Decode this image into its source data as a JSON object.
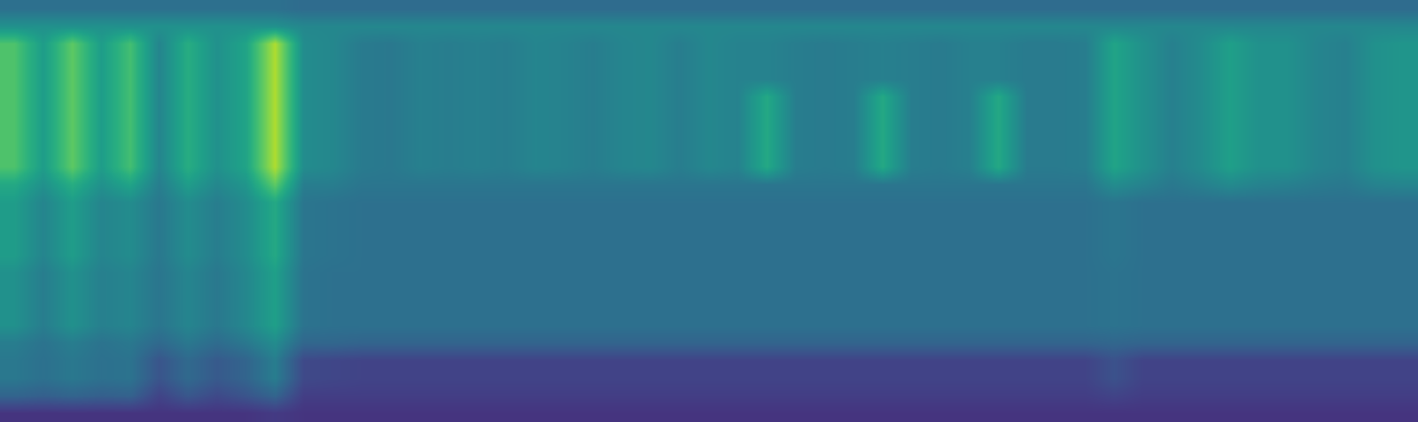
{
  "chart_data": {
    "type": "heatmap",
    "color": "viridis",
    "tick_labels": false,
    "zlim": [
      0,
      1
    ],
    "cells": [
      [
        0.37,
        0.37,
        0.37,
        0.37,
        0.37,
        0.37,
        0.37,
        0.37,
        0.37,
        0.37,
        0.35,
        0.35,
        0.35,
        0.35,
        0.35,
        0.35,
        0.35,
        0.35,
        0.35,
        0.35,
        0.35,
        0.35,
        0.35,
        0.35,
        0.35,
        0.35,
        0.35,
        0.35,
        0.35,
        0.35,
        0.35,
        0.35,
        0.35,
        0.35,
        0.35,
        0.35,
        0.35,
        0.35,
        0.35,
        0.35,
        0.35,
        0.35,
        0.35,
        0.35,
        0.35,
        0.35,
        0.35,
        0.35,
        0.35
      ],
      [
        0.5,
        0.5,
        0.5,
        0.5,
        0.5,
        0.5,
        0.5,
        0.5,
        0.5,
        0.5,
        0.46,
        0.46,
        0.46,
        0.46,
        0.46,
        0.46,
        0.46,
        0.46,
        0.46,
        0.46,
        0.46,
        0.46,
        0.46,
        0.46,
        0.46,
        0.46,
        0.46,
        0.46,
        0.46,
        0.46,
        0.46,
        0.46,
        0.46,
        0.46,
        0.46,
        0.46,
        0.46,
        0.46,
        0.46,
        0.46,
        0.46,
        0.46,
        0.46,
        0.46,
        0.46,
        0.46,
        0.46,
        0.46,
        0.46
      ],
      [
        0.72,
        0.55,
        0.75,
        0.55,
        0.7,
        0.45,
        0.62,
        0.5,
        0.58,
        0.88,
        0.48,
        0.46,
        0.41,
        0.4,
        0.43,
        0.42,
        0.43,
        0.42,
        0.45,
        0.44,
        0.42,
        0.45,
        0.46,
        0.42,
        0.46,
        0.44,
        0.44,
        0.42,
        0.41,
        0.42,
        0.43,
        0.42,
        0.41,
        0.43,
        0.43,
        0.41,
        0.41,
        0.42,
        0.58,
        0.5,
        0.43,
        0.48,
        0.56,
        0.5,
        0.5,
        0.45,
        0.43,
        0.5,
        0.52
      ],
      [
        0.72,
        0.55,
        0.75,
        0.55,
        0.7,
        0.45,
        0.62,
        0.5,
        0.58,
        0.88,
        0.48,
        0.46,
        0.41,
        0.4,
        0.43,
        0.42,
        0.43,
        0.42,
        0.45,
        0.44,
        0.42,
        0.45,
        0.46,
        0.42,
        0.46,
        0.44,
        0.44,
        0.42,
        0.41,
        0.42,
        0.43,
        0.42,
        0.41,
        0.43,
        0.43,
        0.41,
        0.41,
        0.42,
        0.58,
        0.5,
        0.43,
        0.48,
        0.56,
        0.5,
        0.5,
        0.45,
        0.43,
        0.5,
        0.52
      ],
      [
        0.72,
        0.55,
        0.75,
        0.55,
        0.7,
        0.45,
        0.62,
        0.5,
        0.58,
        0.88,
        0.48,
        0.46,
        0.41,
        0.4,
        0.43,
        0.42,
        0.43,
        0.42,
        0.45,
        0.44,
        0.42,
        0.45,
        0.46,
        0.42,
        0.46,
        0.44,
        0.44,
        0.42,
        0.41,
        0.42,
        0.43,
        0.42,
        0.41,
        0.43,
        0.43,
        0.41,
        0.41,
        0.42,
        0.58,
        0.5,
        0.43,
        0.48,
        0.56,
        0.5,
        0.5,
        0.45,
        0.43,
        0.5,
        0.52
      ],
      [
        0.72,
        0.55,
        0.75,
        0.55,
        0.7,
        0.45,
        0.62,
        0.5,
        0.58,
        0.88,
        0.48,
        0.46,
        0.41,
        0.4,
        0.43,
        0.42,
        0.43,
        0.42,
        0.45,
        0.44,
        0.42,
        0.45,
        0.46,
        0.42,
        0.46,
        0.44,
        0.6,
        0.42,
        0.41,
        0.42,
        0.6,
        0.42,
        0.41,
        0.43,
        0.6,
        0.41,
        0.41,
        0.42,
        0.58,
        0.5,
        0.43,
        0.48,
        0.56,
        0.5,
        0.5,
        0.45,
        0.43,
        0.5,
        0.52
      ],
      [
        0.72,
        0.55,
        0.75,
        0.55,
        0.7,
        0.45,
        0.62,
        0.5,
        0.58,
        0.88,
        0.48,
        0.46,
        0.41,
        0.4,
        0.43,
        0.42,
        0.43,
        0.42,
        0.45,
        0.44,
        0.42,
        0.45,
        0.46,
        0.42,
        0.46,
        0.44,
        0.6,
        0.42,
        0.41,
        0.42,
        0.6,
        0.42,
        0.41,
        0.43,
        0.6,
        0.41,
        0.41,
        0.42,
        0.58,
        0.5,
        0.43,
        0.48,
        0.56,
        0.5,
        0.5,
        0.45,
        0.43,
        0.5,
        0.52
      ],
      [
        0.72,
        0.55,
        0.75,
        0.55,
        0.7,
        0.45,
        0.62,
        0.5,
        0.58,
        0.88,
        0.48,
        0.46,
        0.41,
        0.4,
        0.43,
        0.42,
        0.43,
        0.42,
        0.45,
        0.44,
        0.42,
        0.45,
        0.46,
        0.42,
        0.46,
        0.44,
        0.6,
        0.42,
        0.41,
        0.42,
        0.6,
        0.42,
        0.41,
        0.43,
        0.6,
        0.41,
        0.41,
        0.42,
        0.58,
        0.5,
        0.43,
        0.48,
        0.56,
        0.5,
        0.5,
        0.45,
        0.43,
        0.5,
        0.52
      ],
      [
        0.72,
        0.55,
        0.75,
        0.55,
        0.7,
        0.45,
        0.62,
        0.5,
        0.58,
        0.88,
        0.48,
        0.46,
        0.41,
        0.4,
        0.43,
        0.42,
        0.43,
        0.42,
        0.45,
        0.44,
        0.42,
        0.45,
        0.46,
        0.42,
        0.46,
        0.44,
        0.6,
        0.42,
        0.41,
        0.42,
        0.6,
        0.42,
        0.41,
        0.43,
        0.6,
        0.41,
        0.41,
        0.42,
        0.58,
        0.5,
        0.43,
        0.48,
        0.56,
        0.5,
        0.5,
        0.45,
        0.43,
        0.5,
        0.52
      ],
      [
        0.72,
        0.55,
        0.75,
        0.55,
        0.7,
        0.45,
        0.62,
        0.5,
        0.58,
        0.88,
        0.48,
        0.46,
        0.41,
        0.4,
        0.43,
        0.42,
        0.43,
        0.42,
        0.45,
        0.44,
        0.42,
        0.45,
        0.46,
        0.42,
        0.46,
        0.44,
        0.6,
        0.42,
        0.41,
        0.42,
        0.6,
        0.42,
        0.41,
        0.43,
        0.6,
        0.41,
        0.41,
        0.42,
        0.58,
        0.5,
        0.43,
        0.48,
        0.56,
        0.5,
        0.5,
        0.45,
        0.43,
        0.5,
        0.52
      ],
      [
        0.6,
        0.5,
        0.62,
        0.5,
        0.58,
        0.42,
        0.55,
        0.46,
        0.52,
        0.75,
        0.42,
        0.42,
        0.39,
        0.39,
        0.39,
        0.39,
        0.39,
        0.39,
        0.39,
        0.39,
        0.39,
        0.39,
        0.39,
        0.39,
        0.39,
        0.39,
        0.39,
        0.39,
        0.39,
        0.39,
        0.39,
        0.39,
        0.39,
        0.39,
        0.39,
        0.39,
        0.39,
        0.39,
        0.48,
        0.44,
        0.4,
        0.43,
        0.47,
        0.44,
        0.43,
        0.41,
        0.4,
        0.44,
        0.45
      ],
      [
        0.55,
        0.45,
        0.55,
        0.45,
        0.48,
        0.4,
        0.48,
        0.42,
        0.48,
        0.6,
        0.39,
        0.38,
        0.37,
        0.37,
        0.37,
        0.37,
        0.37,
        0.37,
        0.37,
        0.37,
        0.37,
        0.37,
        0.37,
        0.37,
        0.37,
        0.37,
        0.37,
        0.37,
        0.37,
        0.37,
        0.37,
        0.37,
        0.37,
        0.37,
        0.37,
        0.37,
        0.37,
        0.37,
        0.39,
        0.37,
        0.37,
        0.37,
        0.37,
        0.37,
        0.37,
        0.37,
        0.37,
        0.37,
        0.37
      ],
      [
        0.55,
        0.45,
        0.55,
        0.45,
        0.48,
        0.4,
        0.48,
        0.42,
        0.48,
        0.6,
        0.39,
        0.38,
        0.37,
        0.37,
        0.37,
        0.37,
        0.37,
        0.37,
        0.37,
        0.37,
        0.37,
        0.37,
        0.37,
        0.37,
        0.37,
        0.37,
        0.37,
        0.37,
        0.37,
        0.37,
        0.37,
        0.37,
        0.37,
        0.37,
        0.37,
        0.37,
        0.37,
        0.37,
        0.39,
        0.37,
        0.37,
        0.37,
        0.37,
        0.37,
        0.37,
        0.37,
        0.37,
        0.37,
        0.37
      ],
      [
        0.55,
        0.45,
        0.55,
        0.45,
        0.48,
        0.4,
        0.48,
        0.42,
        0.48,
        0.6,
        0.39,
        0.38,
        0.37,
        0.37,
        0.37,
        0.37,
        0.37,
        0.37,
        0.37,
        0.37,
        0.37,
        0.37,
        0.37,
        0.37,
        0.37,
        0.37,
        0.37,
        0.37,
        0.37,
        0.37,
        0.37,
        0.37,
        0.37,
        0.37,
        0.37,
        0.37,
        0.37,
        0.37,
        0.39,
        0.37,
        0.37,
        0.37,
        0.37,
        0.37,
        0.37,
        0.37,
        0.37,
        0.37,
        0.37
      ],
      [
        0.55,
        0.45,
        0.55,
        0.45,
        0.48,
        0.4,
        0.48,
        0.42,
        0.48,
        0.6,
        0.39,
        0.38,
        0.37,
        0.37,
        0.37,
        0.37,
        0.37,
        0.37,
        0.37,
        0.37,
        0.37,
        0.37,
        0.37,
        0.37,
        0.37,
        0.37,
        0.37,
        0.37,
        0.37,
        0.37,
        0.37,
        0.37,
        0.37,
        0.37,
        0.37,
        0.37,
        0.37,
        0.37,
        0.39,
        0.37,
        0.37,
        0.37,
        0.37,
        0.37,
        0.37,
        0.37,
        0.37,
        0.37,
        0.37
      ],
      [
        0.5,
        0.42,
        0.5,
        0.43,
        0.45,
        0.39,
        0.45,
        0.4,
        0.46,
        0.56,
        0.38,
        0.37,
        0.37,
        0.37,
        0.37,
        0.37,
        0.37,
        0.37,
        0.37,
        0.37,
        0.37,
        0.37,
        0.37,
        0.37,
        0.37,
        0.37,
        0.37,
        0.37,
        0.37,
        0.37,
        0.37,
        0.37,
        0.37,
        0.37,
        0.37,
        0.37,
        0.37,
        0.37,
        0.38,
        0.37,
        0.37,
        0.37,
        0.37,
        0.37,
        0.37,
        0.37,
        0.37,
        0.37,
        0.37
      ],
      [
        0.5,
        0.42,
        0.5,
        0.43,
        0.45,
        0.39,
        0.45,
        0.4,
        0.46,
        0.56,
        0.38,
        0.37,
        0.37,
        0.37,
        0.37,
        0.37,
        0.37,
        0.37,
        0.37,
        0.37,
        0.37,
        0.37,
        0.37,
        0.37,
        0.37,
        0.37,
        0.37,
        0.37,
        0.37,
        0.37,
        0.37,
        0.37,
        0.37,
        0.37,
        0.37,
        0.37,
        0.37,
        0.37,
        0.38,
        0.37,
        0.37,
        0.37,
        0.37,
        0.37,
        0.37,
        0.37,
        0.37,
        0.37,
        0.37
      ],
      [
        0.5,
        0.42,
        0.5,
        0.43,
        0.45,
        0.39,
        0.45,
        0.4,
        0.46,
        0.56,
        0.38,
        0.37,
        0.37,
        0.37,
        0.37,
        0.37,
        0.37,
        0.37,
        0.37,
        0.37,
        0.37,
        0.37,
        0.37,
        0.37,
        0.37,
        0.37,
        0.37,
        0.37,
        0.37,
        0.37,
        0.37,
        0.37,
        0.37,
        0.37,
        0.37,
        0.37,
        0.37,
        0.37,
        0.38,
        0.37,
        0.37,
        0.37,
        0.37,
        0.37,
        0.37,
        0.37,
        0.37,
        0.37,
        0.37
      ],
      [
        0.5,
        0.42,
        0.5,
        0.43,
        0.45,
        0.39,
        0.45,
        0.4,
        0.46,
        0.56,
        0.38,
        0.37,
        0.37,
        0.37,
        0.37,
        0.37,
        0.37,
        0.37,
        0.37,
        0.37,
        0.37,
        0.37,
        0.37,
        0.37,
        0.37,
        0.37,
        0.37,
        0.37,
        0.37,
        0.37,
        0.37,
        0.37,
        0.37,
        0.37,
        0.37,
        0.37,
        0.37,
        0.37,
        0.38,
        0.37,
        0.37,
        0.37,
        0.37,
        0.37,
        0.37,
        0.37,
        0.37,
        0.37,
        0.37
      ],
      [
        0.42,
        0.38,
        0.42,
        0.38,
        0.4,
        0.34,
        0.4,
        0.35,
        0.4,
        0.48,
        0.33,
        0.33,
        0.32,
        0.32,
        0.32,
        0.32,
        0.32,
        0.32,
        0.32,
        0.32,
        0.32,
        0.32,
        0.32,
        0.32,
        0.32,
        0.32,
        0.32,
        0.32,
        0.32,
        0.32,
        0.32,
        0.32,
        0.32,
        0.32,
        0.32,
        0.32,
        0.32,
        0.32,
        0.33,
        0.32,
        0.32,
        0.32,
        0.32,
        0.32,
        0.32,
        0.32,
        0.32,
        0.32,
        0.32
      ],
      [
        0.4,
        0.37,
        0.4,
        0.37,
        0.38,
        0.26,
        0.34,
        0.28,
        0.32,
        0.42,
        0.22,
        0.21,
        0.2,
        0.2,
        0.2,
        0.2,
        0.2,
        0.2,
        0.2,
        0.2,
        0.2,
        0.2,
        0.2,
        0.2,
        0.2,
        0.2,
        0.2,
        0.2,
        0.2,
        0.2,
        0.2,
        0.2,
        0.2,
        0.2,
        0.2,
        0.2,
        0.2,
        0.2,
        0.25,
        0.2,
        0.2,
        0.2,
        0.2,
        0.2,
        0.2,
        0.2,
        0.2,
        0.2,
        0.2
      ],
      [
        0.4,
        0.37,
        0.4,
        0.37,
        0.38,
        0.26,
        0.34,
        0.28,
        0.32,
        0.42,
        0.22,
        0.21,
        0.2,
        0.2,
        0.2,
        0.2,
        0.2,
        0.2,
        0.2,
        0.2,
        0.2,
        0.2,
        0.2,
        0.2,
        0.2,
        0.2,
        0.2,
        0.2,
        0.2,
        0.2,
        0.2,
        0.2,
        0.2,
        0.2,
        0.2,
        0.2,
        0.2,
        0.2,
        0.25,
        0.2,
        0.2,
        0.2,
        0.2,
        0.2,
        0.2,
        0.2,
        0.2,
        0.2,
        0.2
      ],
      [
        0.32,
        0.3,
        0.32,
        0.3,
        0.31,
        0.2,
        0.27,
        0.22,
        0.26,
        0.32,
        0.18,
        0.18,
        0.18,
        0.18,
        0.18,
        0.18,
        0.18,
        0.18,
        0.18,
        0.18,
        0.18,
        0.18,
        0.18,
        0.18,
        0.18,
        0.18,
        0.18,
        0.18,
        0.18,
        0.18,
        0.18,
        0.18,
        0.18,
        0.18,
        0.18,
        0.18,
        0.18,
        0.18,
        0.2,
        0.18,
        0.18,
        0.18,
        0.18,
        0.18,
        0.18,
        0.18,
        0.18,
        0.18,
        0.18
      ],
      [
        0.15,
        0.15,
        0.15,
        0.15,
        0.15,
        0.15,
        0.15,
        0.15,
        0.15,
        0.17,
        0.15,
        0.15,
        0.15,
        0.15,
        0.15,
        0.15,
        0.15,
        0.15,
        0.15,
        0.15,
        0.15,
        0.15,
        0.15,
        0.15,
        0.15,
        0.15,
        0.15,
        0.15,
        0.15,
        0.15,
        0.15,
        0.15,
        0.15,
        0.15,
        0.15,
        0.15,
        0.15,
        0.15,
        0.15,
        0.15,
        0.15,
        0.15,
        0.15,
        0.15,
        0.15,
        0.15,
        0.15,
        0.15,
        0.15
      ]
    ]
  }
}
